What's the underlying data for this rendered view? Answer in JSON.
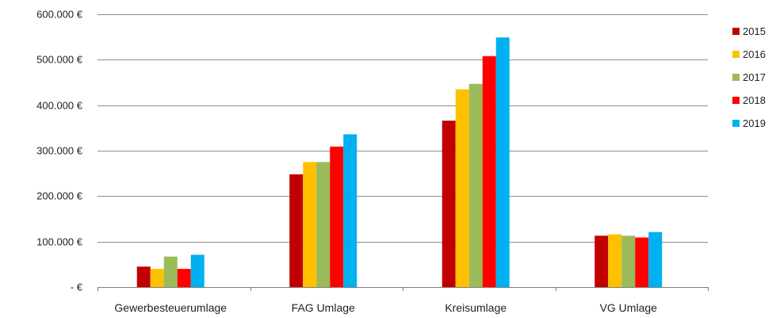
{
  "chart_data": {
    "type": "bar",
    "categories": [
      "Gewerbesteuerumlage",
      "FAG Umlage",
      "Kreisumlage",
      "VG Umlage"
    ],
    "series": [
      {
        "name": "2015",
        "color": "#c00000",
        "values": [
          45000,
          248000,
          366000,
          113000
        ]
      },
      {
        "name": "2016",
        "color": "#ffc000",
        "values": [
          40000,
          275000,
          435000,
          116000
        ]
      },
      {
        "name": "2017",
        "color": "#9bbb59",
        "values": [
          67000,
          275000,
          447000,
          113000
        ]
      },
      {
        "name": "2018",
        "color": "#ff0000",
        "values": [
          40000,
          309000,
          508000,
          109000
        ]
      },
      {
        "name": "2019",
        "color": "#00b0f0",
        "values": [
          71000,
          336000,
          549000,
          121000
        ]
      }
    ],
    "ylim": [
      0,
      600000
    ],
    "yticks": [
      {
        "value": 0,
        "label": "- €"
      },
      {
        "value": 100000,
        "label": "100.000 €"
      },
      {
        "value": 200000,
        "label": "200.000 €"
      },
      {
        "value": 300000,
        "label": "300.000 €"
      },
      {
        "value": 400000,
        "label": "400.000 €"
      },
      {
        "value": 500000,
        "label": "500.000 €"
      },
      {
        "value": 600000,
        "label": "600.000 €"
      }
    ],
    "grid": true,
    "legend_position": "right",
    "gridline_color": "#8c8c8c"
  }
}
